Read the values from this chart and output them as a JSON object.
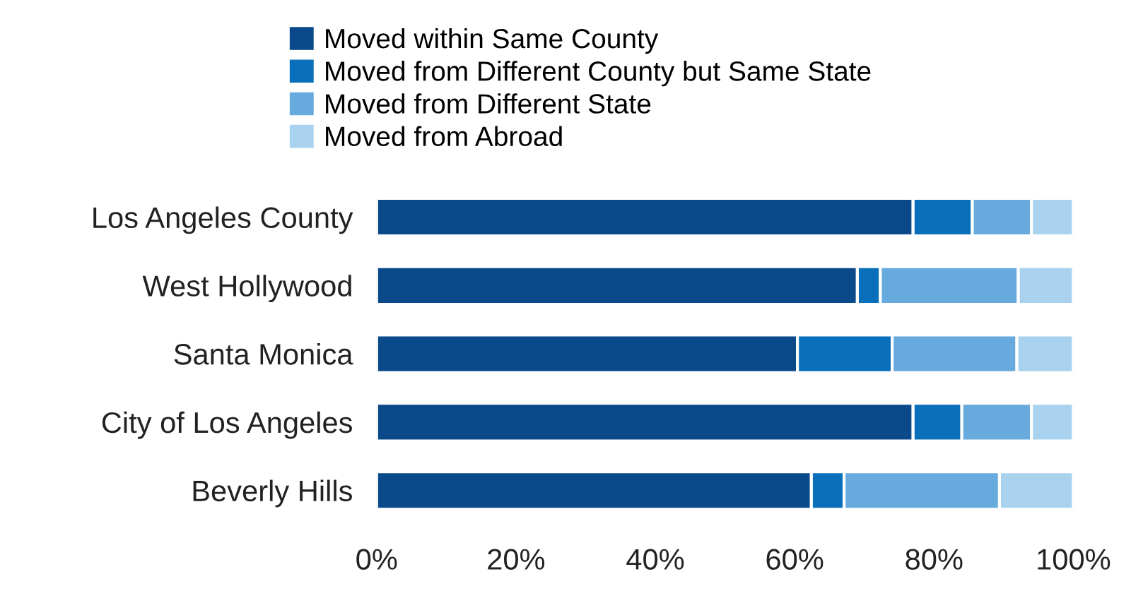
{
  "chart_data": {
    "type": "bar",
    "orientation": "horizontal",
    "stacked": true,
    "categories": [
      "Los Angeles County",
      "West Hollywood",
      "Santa Monica",
      "City of Los Angeles",
      "Beverly Hills"
    ],
    "series": [
      {
        "name": "Moved within Same County",
        "color": "#0b4a8a",
        "values": [
          77,
          69,
          60.4,
          77,
          62.4
        ]
      },
      {
        "name": "Moved from Different County but Same State",
        "color": "#0a6fba",
        "values": [
          8.5,
          3.3,
          13.6,
          7,
          4.7
        ]
      },
      {
        "name": "Moved from Different State",
        "color": "#67aadd",
        "values": [
          8.5,
          19.8,
          17.9,
          10,
          22.3
        ]
      },
      {
        "name": "Moved from Abroad",
        "color": "#a9d2ee",
        "values": [
          6,
          7.9,
          8.1,
          6,
          10.6
        ]
      }
    ],
    "xlim": [
      0,
      100
    ],
    "xticks": [
      {
        "value": 0,
        "label": "0%"
      },
      {
        "value": 20,
        "label": "20%"
      },
      {
        "value": 40,
        "label": "40%"
      },
      {
        "value": 60,
        "label": "60%"
      },
      {
        "value": 80,
        "label": "80%"
      },
      {
        "value": 100,
        "label": "100%"
      }
    ],
    "legend": "top",
    "grid": false
  }
}
